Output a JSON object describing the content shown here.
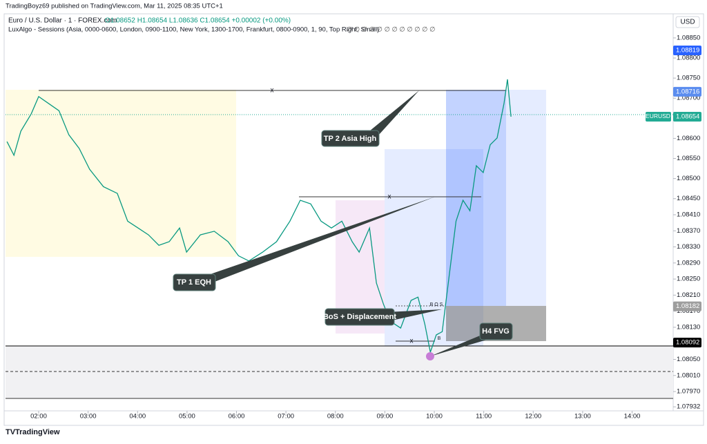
{
  "header": {
    "publisher": "TradingBoyz69 published on TradingView.com, Mar 11, 2025 08:35 UTC+1"
  },
  "legend": {
    "symbol": "Euro / U.S. Dollar · 1 · FOREX.com",
    "ohlc": "O1.08652 H1.08654 L1.08636 C1.08654 +0.00002 (+0.00%)",
    "indicator": "LuxAlgo - Sessions (Asia, 0000-0600, London, 0900-1100, New York, 1300-1700, Frankfurt, 0800-0900, 1, 90, Top Right, Small)",
    "icons": "∅ ∅ ∅ ∅ ∅ ∅ ∅ ∅ ∅ ∅ ∅ ∅"
  },
  "chart": {
    "type": "line",
    "currency": "USD",
    "color": "#089981",
    "xlim": [
      1.33,
      14.83
    ],
    "ylim": [
      1.07922,
      1.0891
    ],
    "xticks": [
      {
        "value": 2,
        "label": "02:00"
      },
      {
        "value": 3,
        "label": "03:00"
      },
      {
        "value": 4,
        "label": "04:00"
      },
      {
        "value": 5,
        "label": "05:00"
      },
      {
        "value": 6,
        "label": "06:00"
      },
      {
        "value": 7,
        "label": "07:00"
      },
      {
        "value": 8,
        "label": "08:00"
      },
      {
        "value": 9,
        "label": "09:00"
      },
      {
        "value": 10,
        "label": "10:00"
      },
      {
        "value": 11,
        "label": "11:00"
      },
      {
        "value": 12,
        "label": "12:00"
      },
      {
        "value": 13,
        "label": "13:00"
      },
      {
        "value": 14,
        "label": "14:00"
      }
    ],
    "yticks": [
      {
        "value": 1.0885,
        "label": "1.08850"
      },
      {
        "value": 1.088,
        "label": "1.08800"
      },
      {
        "value": 1.0875,
        "label": "1.08750"
      },
      {
        "value": 1.087,
        "label": "1.08700"
      },
      {
        "value": 1.086,
        "label": "1.08600"
      },
      {
        "value": 1.0855,
        "label": "1.08550"
      },
      {
        "value": 1.085,
        "label": "1.08500"
      },
      {
        "value": 1.0845,
        "label": "1.08450"
      },
      {
        "value": 1.0841,
        "label": "1.08410"
      },
      {
        "value": 1.0837,
        "label": "1.08370"
      },
      {
        "value": 1.0833,
        "label": "1.08330"
      },
      {
        "value": 1.0829,
        "label": "1.08290"
      },
      {
        "value": 1.0825,
        "label": "1.08250"
      },
      {
        "value": 1.0821,
        "label": "1.08210"
      },
      {
        "value": 1.0817,
        "label": "1.08170"
      },
      {
        "value": 1.0813,
        "label": "1.08130"
      },
      {
        "value": 1.0805,
        "label": "1.08050"
      },
      {
        "value": 1.0801,
        "label": "1.08010"
      },
      {
        "value": 1.0797,
        "label": "1.07970"
      },
      {
        "value": 1.07932,
        "label": "1.07932"
      }
    ],
    "x": [
      1.36,
      1.5,
      1.64,
      1.85,
      2.0,
      2.2,
      2.41,
      2.61,
      2.82,
      3.03,
      3.31,
      3.59,
      3.8,
      4.01,
      4.22,
      4.43,
      4.64,
      4.85,
      4.99,
      5.27,
      5.55,
      5.83,
      6.04,
      6.25,
      6.53,
      6.81,
      7.08,
      7.29,
      7.5,
      7.71,
      7.92,
      8.13,
      8.34,
      8.48,
      8.69,
      8.83,
      8.97,
      9.11,
      9.32,
      9.53,
      9.67,
      9.81,
      9.92,
      10.04,
      10.16,
      10.3,
      10.44,
      10.58,
      10.72,
      10.85,
      10.99,
      11.13,
      11.27,
      11.41,
      11.48,
      11.55
    ],
    "values": [
      1.08592,
      1.08558,
      1.08618,
      1.08661,
      1.08704,
      1.08687,
      1.08669,
      1.08609,
      1.08575,
      1.08523,
      1.0848,
      1.08463,
      1.08394,
      1.08377,
      1.0836,
      1.08334,
      1.08343,
      1.08377,
      1.08317,
      1.0836,
      1.08369,
      1.08343,
      1.08308,
      1.08295,
      1.08317,
      1.08343,
      1.08394,
      1.08446,
      1.08437,
      1.08394,
      1.08377,
      1.08394,
      1.08343,
      1.08317,
      1.08377,
      1.0824,
      1.08188,
      1.08145,
      1.08128,
      1.08197,
      1.08205,
      1.08137,
      1.08068,
      1.08111,
      1.08119,
      1.08257,
      1.08394,
      1.08446,
      1.0842,
      1.08532,
      1.08515,
      1.08584,
      1.08601,
      1.08687,
      1.08747,
      1.08654
    ],
    "price_labels": [
      {
        "value": 1.08819,
        "label": "1.08819",
        "color": "#2962ff"
      },
      {
        "value": 1.08716,
        "label": "1.08716",
        "color": "#5b8def"
      },
      {
        "value": 1.08654,
        "label": "1.08654",
        "name": "EURUSD",
        "color": "#22ab94"
      },
      {
        "value": 1.08182,
        "label": "1.08182",
        "color": "#9e9e9e"
      },
      {
        "value": 1.08092,
        "label": "1.08092",
        "color": "#000000"
      }
    ],
    "annotations": {
      "tp2": "TP 2 Asia High",
      "tp1": "TP 1 EQH",
      "bos": "BoS + Displacement",
      "fvg": "H4 FVG",
      "x": "x",
      "bos_small": "B O S",
      "b": "B"
    }
  },
  "footer": {
    "brand": "TradingView"
  }
}
